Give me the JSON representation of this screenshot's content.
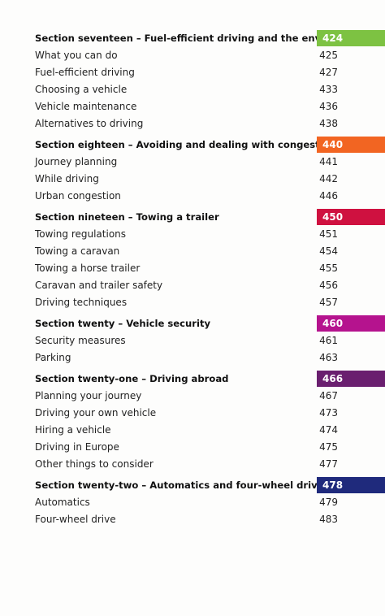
{
  "sections": [
    {
      "title": "Section seventeen – Fuel-efficient driving and the environment",
      "page": "424",
      "color": "#7dc242",
      "items": [
        {
          "label": "What you can do",
          "page": "425"
        },
        {
          "label": "Fuel-efficient driving",
          "page": "427"
        },
        {
          "label": "Choosing a vehicle",
          "page": "433"
        },
        {
          "label": "Vehicle maintenance",
          "page": "436"
        },
        {
          "label": "Alternatives to driving",
          "page": "438"
        }
      ]
    },
    {
      "title": "Section eighteen – Avoiding and dealing with congestion",
      "page": "440",
      "color": "#f26522",
      "items": [
        {
          "label": "Journey planning",
          "page": "441"
        },
        {
          "label": "While driving",
          "page": "442"
        },
        {
          "label": "Urban congestion",
          "page": "446"
        }
      ]
    },
    {
      "title": "Section nineteen – Towing a trailer",
      "page": "450",
      "color": "#cf1140",
      "items": [
        {
          "label": "Towing regulations",
          "page": "451"
        },
        {
          "label": "Towing a caravan",
          "page": "454"
        },
        {
          "label": "Towing a horse trailer",
          "page": "455"
        },
        {
          "label": "Caravan and trailer safety",
          "page": "456"
        },
        {
          "label": "Driving techniques",
          "page": "457"
        }
      ]
    },
    {
      "title": "Section twenty – Vehicle security",
      "page": "460",
      "color": "#b5138e",
      "items": [
        {
          "label": "Security measures",
          "page": "461"
        },
        {
          "label": "Parking",
          "page": "463"
        }
      ]
    },
    {
      "title": "Section twenty-one – Driving abroad",
      "page": "466",
      "color": "#6a1f6f",
      "items": [
        {
          "label": "Planning your journey",
          "page": "467"
        },
        {
          "label": "Driving your own vehicle",
          "page": "473"
        },
        {
          "label": "Hiring a vehicle",
          "page": "474"
        },
        {
          "label": "Driving in Europe",
          "page": "475"
        },
        {
          "label": "Other things to consider",
          "page": "477"
        }
      ]
    },
    {
      "title": "Section twenty-two – Automatics and four-wheel drive",
      "page": "478",
      "color": "#1f2a7c",
      "items": [
        {
          "label": "Automatics",
          "page": "479"
        },
        {
          "label": "Four-wheel drive",
          "page": "483"
        }
      ]
    }
  ]
}
